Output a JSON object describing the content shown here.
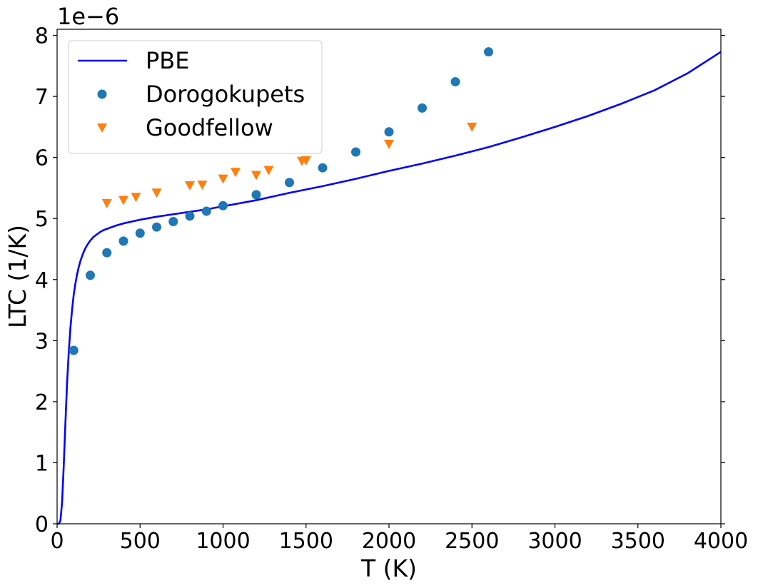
{
  "chart_data": {
    "type": "line",
    "title": "",
    "xlabel": "T (K)",
    "ylabel": "LTC (1/K)",
    "offset_label": "1e−6",
    "xlim": [
      0,
      4000
    ],
    "ylim": [
      0,
      8.1
    ],
    "xticks": [
      0,
      500,
      1000,
      1500,
      2000,
      2500,
      3000,
      3500,
      4000
    ],
    "yticks": [
      0,
      1,
      2,
      3,
      4,
      5,
      6,
      7,
      8
    ],
    "grid": false,
    "legend_position": "top-left",
    "series": [
      {
        "name": "PBE",
        "kind": "line",
        "color": "#0000ff",
        "x": [
          0,
          10,
          20,
          30,
          40,
          50,
          60,
          70,
          80,
          90,
          100,
          110,
          120,
          130,
          140,
          150,
          160,
          170,
          180,
          190,
          200,
          220,
          240,
          260,
          280,
          300,
          350,
          400,
          450,
          500,
          600,
          700,
          800,
          900,
          1000,
          1200,
          1400,
          1600,
          1800,
          2000,
          2200,
          2400,
          2600,
          2800,
          3000,
          3200,
          3400,
          3600,
          3800,
          4000
        ],
        "y": [
          0,
          0.0,
          0.05,
          0.35,
          0.95,
          1.65,
          2.3,
          2.8,
          3.2,
          3.5,
          3.75,
          3.93,
          4.08,
          4.2,
          4.3,
          4.38,
          4.45,
          4.51,
          4.56,
          4.6,
          4.64,
          4.7,
          4.74,
          4.78,
          4.81,
          4.83,
          4.88,
          4.92,
          4.95,
          4.98,
          5.03,
          5.07,
          5.11,
          5.15,
          5.2,
          5.3,
          5.42,
          5.53,
          5.65,
          5.78,
          5.9,
          6.03,
          6.17,
          6.33,
          6.5,
          6.68,
          6.88,
          7.1,
          7.38,
          7.73
        ]
      },
      {
        "name": "Dorogokupets",
        "kind": "scatter",
        "marker": "circle",
        "color": "#1f77b4",
        "x": [
          100,
          200,
          300,
          400,
          500,
          600,
          700,
          800,
          900,
          1000,
          1200,
          1400,
          1600,
          1800,
          2000,
          2200,
          2400,
          2600
        ],
        "y": [
          2.84,
          4.07,
          4.44,
          4.63,
          4.76,
          4.86,
          4.95,
          5.04,
          5.12,
          5.21,
          5.39,
          5.59,
          5.83,
          6.09,
          6.42,
          6.81,
          7.24,
          7.73
        ]
      },
      {
        "name": "Goodfellow",
        "kind": "scatter",
        "marker": "triangle-down",
        "color": "#ff7f0e",
        "x": [
          300,
          400,
          475,
          600,
          800,
          875,
          1000,
          1075,
          1200,
          1275,
          1475,
          1500,
          2000,
          2500
        ],
        "y": [
          5.25,
          5.3,
          5.35,
          5.42,
          5.54,
          5.55,
          5.65,
          5.76,
          5.71,
          5.79,
          5.94,
          5.95,
          6.22,
          6.5
        ]
      }
    ]
  }
}
